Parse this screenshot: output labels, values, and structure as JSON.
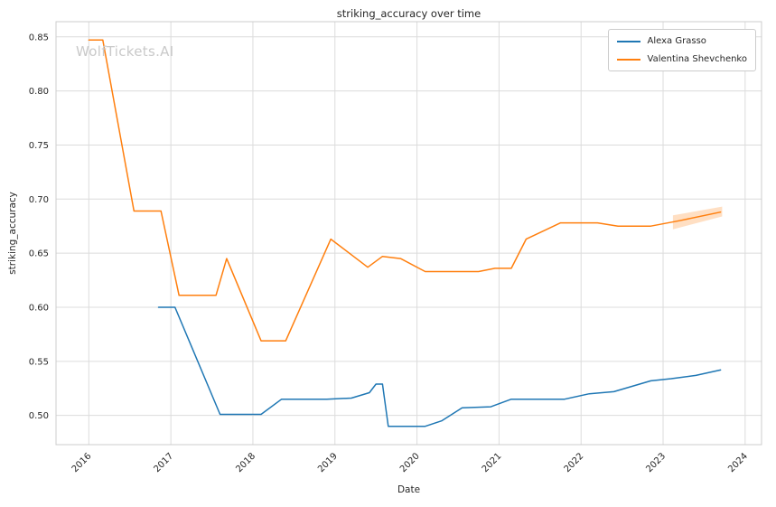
{
  "watermark": "WolfTickets.AI",
  "legend": {
    "position": "upper right",
    "entries": [
      {
        "label": "Alexa Grasso",
        "color": "#1f77b4"
      },
      {
        "label": "Valentina Shevchenko",
        "color": "#ff7f0e"
      }
    ]
  },
  "colors": {
    "grid": "#dcdcdc",
    "spine": "#cccccc",
    "tick_text": "#262626",
    "band_fill": "#ff7f0e"
  },
  "chart_data": {
    "type": "line",
    "title": "striking_accuracy over time",
    "xlabel": "Date",
    "ylabel": "striking_accuracy",
    "xlim": [
      2015.6,
      2024.2
    ],
    "ylim": [
      0.473,
      0.864
    ],
    "x_ticks": [
      2016,
      2017,
      2018,
      2019,
      2020,
      2021,
      2022,
      2023,
      2024
    ],
    "y_ticks": [
      0.5,
      0.55,
      0.6,
      0.65,
      0.7,
      0.75,
      0.8,
      0.85
    ],
    "grid": true,
    "legend_position": "upper right",
    "series": [
      {
        "name": "Alexa Grasso",
        "color": "#1f77b4",
        "points": [
          [
            2016.85,
            0.6
          ],
          [
            2017.05,
            0.6
          ],
          [
            2017.6,
            0.501
          ],
          [
            2017.85,
            0.501
          ],
          [
            2018.1,
            0.501
          ],
          [
            2018.35,
            0.515
          ],
          [
            2018.9,
            0.515
          ],
          [
            2019.2,
            0.516
          ],
          [
            2019.42,
            0.521
          ],
          [
            2019.5,
            0.529
          ],
          [
            2019.58,
            0.529
          ],
          [
            2019.65,
            0.49
          ],
          [
            2020.1,
            0.49
          ],
          [
            2020.3,
            0.495
          ],
          [
            2020.55,
            0.507
          ],
          [
            2020.9,
            0.508
          ],
          [
            2021.15,
            0.515
          ],
          [
            2021.5,
            0.515
          ],
          [
            2021.8,
            0.515
          ],
          [
            2022.1,
            0.52
          ],
          [
            2022.4,
            0.522
          ],
          [
            2022.85,
            0.532
          ],
          [
            2023.1,
            0.534
          ],
          [
            2023.4,
            0.537
          ],
          [
            2023.7,
            0.542
          ]
        ]
      },
      {
        "name": "Valentina Shevchenko",
        "color": "#ff7f0e",
        "points": [
          [
            2016.0,
            0.847
          ],
          [
            2016.17,
            0.847
          ],
          [
            2016.55,
            0.689
          ],
          [
            2016.88,
            0.689
          ],
          [
            2017.1,
            0.611
          ],
          [
            2017.4,
            0.611
          ],
          [
            2017.55,
            0.611
          ],
          [
            2017.68,
            0.645
          ],
          [
            2018.1,
            0.569
          ],
          [
            2018.4,
            0.569
          ],
          [
            2018.95,
            0.663
          ],
          [
            2019.4,
            0.637
          ],
          [
            2019.58,
            0.647
          ],
          [
            2019.8,
            0.645
          ],
          [
            2020.1,
            0.633
          ],
          [
            2020.45,
            0.633
          ],
          [
            2020.75,
            0.633
          ],
          [
            2020.95,
            0.636
          ],
          [
            2021.15,
            0.636
          ],
          [
            2021.33,
            0.663
          ],
          [
            2021.75,
            0.678
          ],
          [
            2022.2,
            0.678
          ],
          [
            2022.45,
            0.675
          ],
          [
            2022.85,
            0.675
          ],
          [
            2023.2,
            0.68
          ],
          [
            2023.7,
            0.688
          ]
        ],
        "band": {
          "x": [
            2023.12,
            2023.72
          ],
          "upper": [
            0.685,
            0.693
          ],
          "lower": [
            0.672,
            0.684
          ],
          "opacity": 0.25
        }
      }
    ]
  }
}
